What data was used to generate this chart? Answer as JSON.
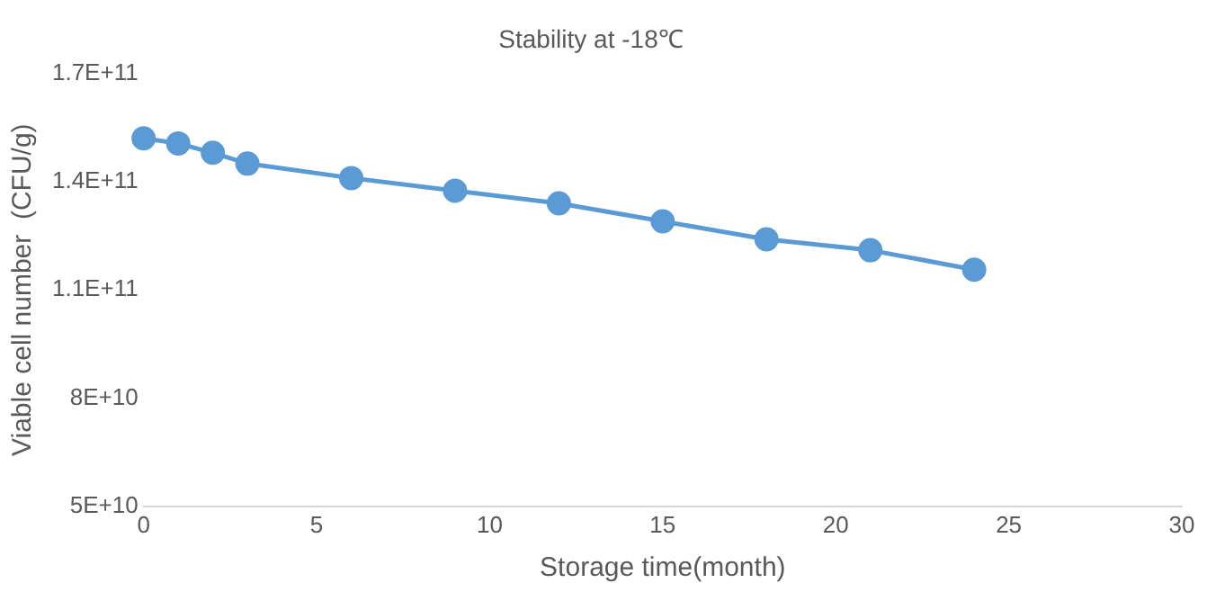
{
  "chart_data": {
    "type": "line",
    "title": "Stability at -18℃",
    "xlabel": "Storage time(month)",
    "ylabel": "Viable cell number  (CFU/g)",
    "x": [
      0,
      1,
      2,
      3,
      6,
      9,
      12,
      15,
      18,
      21,
      24
    ],
    "series": [
      {
        "color": "#5b9bd5",
        "values": [
          152000000000,
          150600000000,
          148000000000,
          145000000000,
          141000000000,
          137500000000,
          134000000000,
          129000000000,
          124000000000,
          121000000000,
          115600000000
        ]
      }
    ],
    "xlim": [
      0,
      30
    ],
    "xticks": [
      0,
      5,
      10,
      15,
      20,
      25,
      30
    ],
    "ylim": [
      50000000000,
      170000000000
    ],
    "yticks": [
      {
        "value": 50000000000,
        "label": "5E+10"
      },
      {
        "value": 80000000000,
        "label": "8E+10"
      },
      {
        "value": 110000000000,
        "label": "1.1E+11"
      },
      {
        "value": 140000000000,
        "label": "1.4E+11"
      },
      {
        "value": 170000000000,
        "label": "1.7E+11"
      }
    ],
    "grid": false,
    "legend": false,
    "marker": "circle",
    "line_style": "solid"
  }
}
